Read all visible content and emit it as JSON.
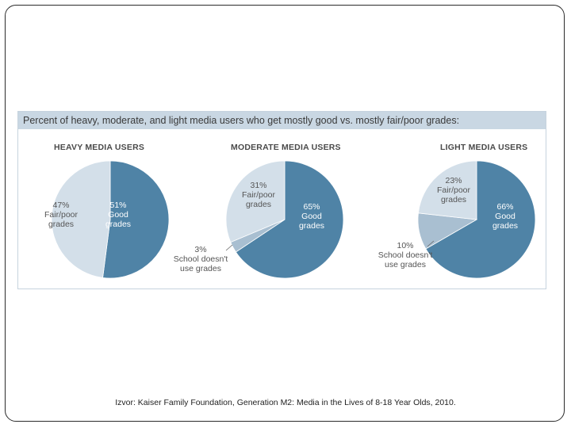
{
  "chart_data": {
    "type": "pie",
    "title": "Percent of heavy, moderate, and light media users who get mostly good vs. mostly fair/poor grades:",
    "colors": {
      "good": "#4f83a6",
      "fair": "#d3dfe9",
      "school": "#a9bfd1"
    },
    "panels": [
      {
        "label": "HEAVY MEDIA USERS",
        "slices": [
          {
            "key": "good",
            "value": 51,
            "pct": "51%",
            "lines": [
              "Good",
              "grades"
            ]
          },
          {
            "key": "fair",
            "value": 47,
            "pct": "47%",
            "lines": [
              "Fair/poor",
              "grades"
            ]
          }
        ]
      },
      {
        "label": "MODERATE MEDIA USERS",
        "slices": [
          {
            "key": "good",
            "value": 65,
            "pct": "65%",
            "lines": [
              "Good",
              "grades"
            ]
          },
          {
            "key": "school",
            "value": 3,
            "pct": "3%",
            "lines": [
              "School doesn't",
              "use grades"
            ]
          },
          {
            "key": "fair",
            "value": 31,
            "pct": "31%",
            "lines": [
              "Fair/poor",
              "grades"
            ]
          }
        ]
      },
      {
        "label": "LIGHT MEDIA USERS",
        "slices": [
          {
            "key": "good",
            "value": 66,
            "pct": "66%",
            "lines": [
              "Good",
              "grades"
            ]
          },
          {
            "key": "school",
            "value": 10,
            "pct": "10%",
            "lines": [
              "School doesn't",
              "use grades"
            ]
          },
          {
            "key": "fair",
            "value": 23,
            "pct": "23%",
            "lines": [
              "Fair/poor",
              "grades"
            ]
          }
        ]
      }
    ]
  },
  "source": "Izvor: Kaiser Family Foundation, Generation M2: Media in the Lives of 8-18  Year Olds, 2010."
}
